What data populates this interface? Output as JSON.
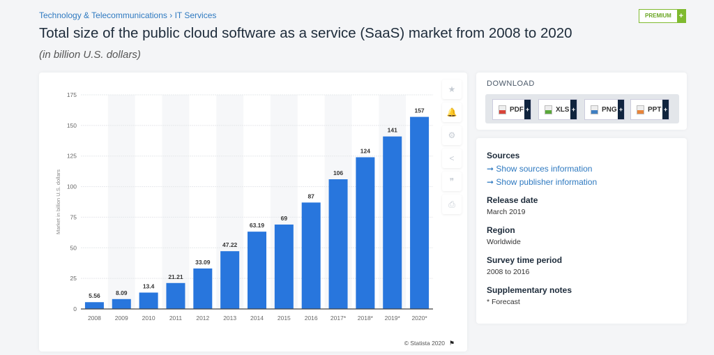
{
  "breadcrumb": {
    "items": [
      "Technology & Telecommunications",
      "IT Services"
    ],
    "separator": "›"
  },
  "premium": {
    "label": "PREMIUM",
    "plus": "+"
  },
  "title": "Total size of the public cloud software as a service (SaaS) market from 2008 to 2020",
  "subtitle": "(in billion U.S. dollars)",
  "chart_data": {
    "type": "bar",
    "categories": [
      "2008",
      "2009",
      "2010",
      "2011",
      "2012",
      "2013",
      "2014",
      "2015",
      "2016",
      "2017*",
      "2018*",
      "2019*",
      "2020*"
    ],
    "values": [
      5.56,
      8.09,
      13.4,
      21.21,
      33.09,
      47.22,
      63.19,
      69,
      87,
      106,
      124,
      141,
      157
    ],
    "value_labels": [
      "5.56",
      "8.09",
      "13.4",
      "21.21",
      "33.09",
      "47.22",
      "63.19",
      "69",
      "87",
      "106",
      "124",
      "141",
      "157"
    ],
    "ylabel": "Market in billion U.S. dollars",
    "ylim": [
      0,
      175
    ],
    "yticks": [
      0,
      25,
      50,
      75,
      100,
      125,
      150,
      175
    ],
    "grid": true,
    "bar_color": "#2876dd",
    "credit": "© Statista 2020"
  },
  "side_tools": [
    {
      "icon": "star-icon",
      "glyph": "★"
    },
    {
      "icon": "bell-icon",
      "glyph": "🔔"
    },
    {
      "icon": "gear-icon",
      "glyph": "⚙"
    },
    {
      "icon": "share-icon",
      "glyph": "<"
    },
    {
      "icon": "quote-icon",
      "glyph": "❞"
    },
    {
      "icon": "print-icon",
      "glyph": "⎙"
    }
  ],
  "download": {
    "title": "DOWNLOAD",
    "buttons": [
      {
        "label": "PDF",
        "color": "#d9443a"
      },
      {
        "label": "XLS",
        "color": "#5aa83a"
      },
      {
        "label": "PNG",
        "color": "#3f7fc2"
      },
      {
        "label": "PPT",
        "color": "#e8853a"
      }
    ],
    "plus": "+"
  },
  "info": {
    "sources_title": "Sources",
    "show_sources": "➞ Show sources information",
    "show_publisher": "➞ Show publisher information",
    "release_date_label": "Release date",
    "release_date": "March 2019",
    "region_label": "Region",
    "region": "Worldwide",
    "survey_label": "Survey time period",
    "survey": "2008 to 2016",
    "notes_label": "Supplementary notes",
    "notes": "* Forecast"
  }
}
